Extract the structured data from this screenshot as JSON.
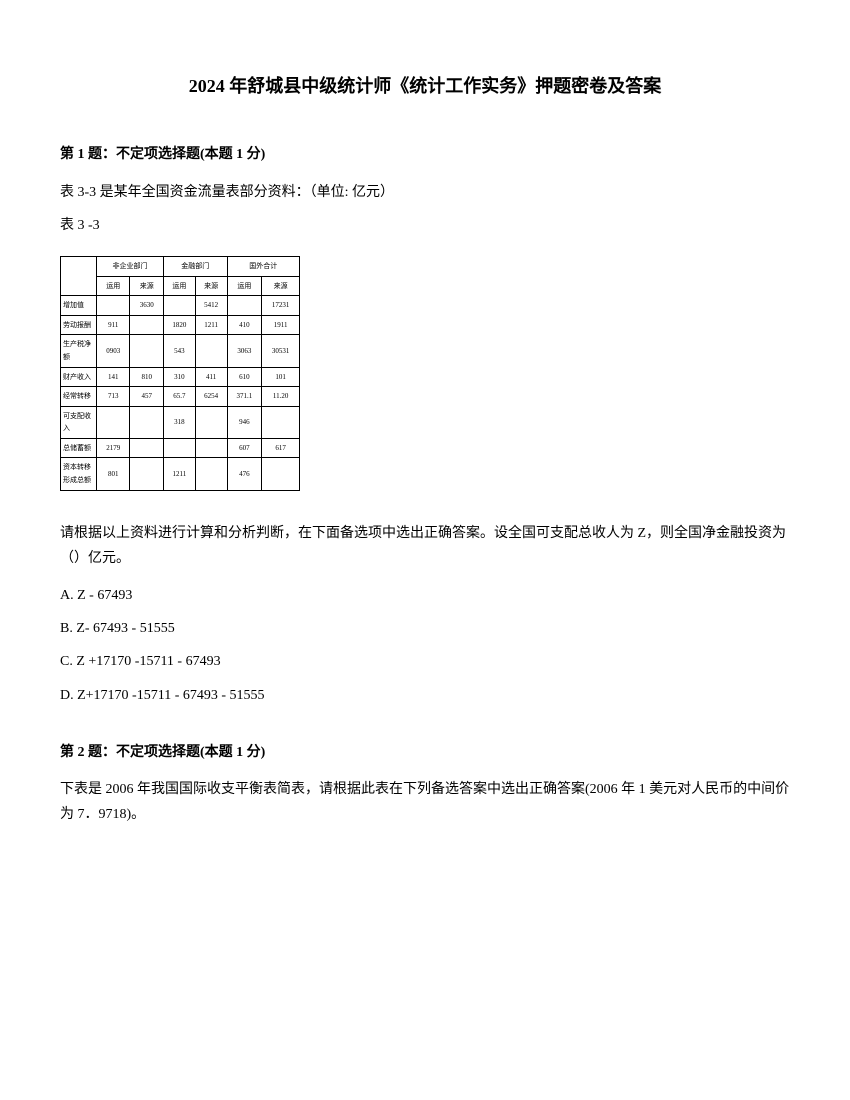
{
  "title": "2024 年舒城县中级统计师《统计工作实务》押题密卷及答案",
  "q1": {
    "header": "第 1 题：不定项选择题(本题 1 分)",
    "intro": "表 3-3 是某年全国资金流量表部分资料：（单位: 亿元）",
    "tableLabel": "表 3 -3",
    "table": {
      "headerRow1": [
        "",
        "非企业部门",
        "金融部门",
        "国外合计"
      ],
      "headerRow2": [
        "",
        "运用",
        "来源",
        "运用",
        "来源",
        "运用",
        "来源"
      ],
      "rows": [
        [
          "增加值",
          "",
          "3630",
          "",
          "5412",
          "",
          "17231"
        ],
        [
          "劳动报酬",
          "911",
          "",
          "1820",
          "1211",
          "410",
          "1911"
        ],
        [
          "生产税净额",
          "0903",
          "",
          "543",
          "",
          "3063",
          "30531"
        ],
        [
          "财产收入",
          "141",
          "810",
          "310",
          "411",
          "610",
          "101"
        ],
        [
          "经常转移",
          "713",
          "457",
          "65.7",
          "6254",
          "371.1",
          "11.20"
        ],
        [
          "可支配收入",
          "",
          "",
          "318",
          "",
          "946",
          ""
        ],
        [
          "总储蓄额",
          "2179",
          "",
          "",
          "",
          "607",
          "617"
        ],
        [
          "资本转移形成总额",
          "801",
          "",
          "1211",
          "",
          "476",
          ""
        ]
      ]
    },
    "questionText": "请根据以上资料进行计算和分析判断，在下面备选项中选出正确答案。设全国可支配总收人为 Z，则全国净金融投资为（）亿元。",
    "options": {
      "a": "A. Z - 67493",
      "b": "B. Z- 67493 - 51555",
      "c": "C. Z +17170 -15711 - 67493",
      "d": "D. Z+17170 -15711 - 67493 - 51555"
    }
  },
  "q2": {
    "header": "第 2 题：不定项选择题(本题 1 分)",
    "questionText": "下表是 2006 年我国国际收支平衡表简表，请根据此表在下列备选答案中选出正确答案(2006 年 1 美元对人民币的中间价为 7．9718)。"
  }
}
